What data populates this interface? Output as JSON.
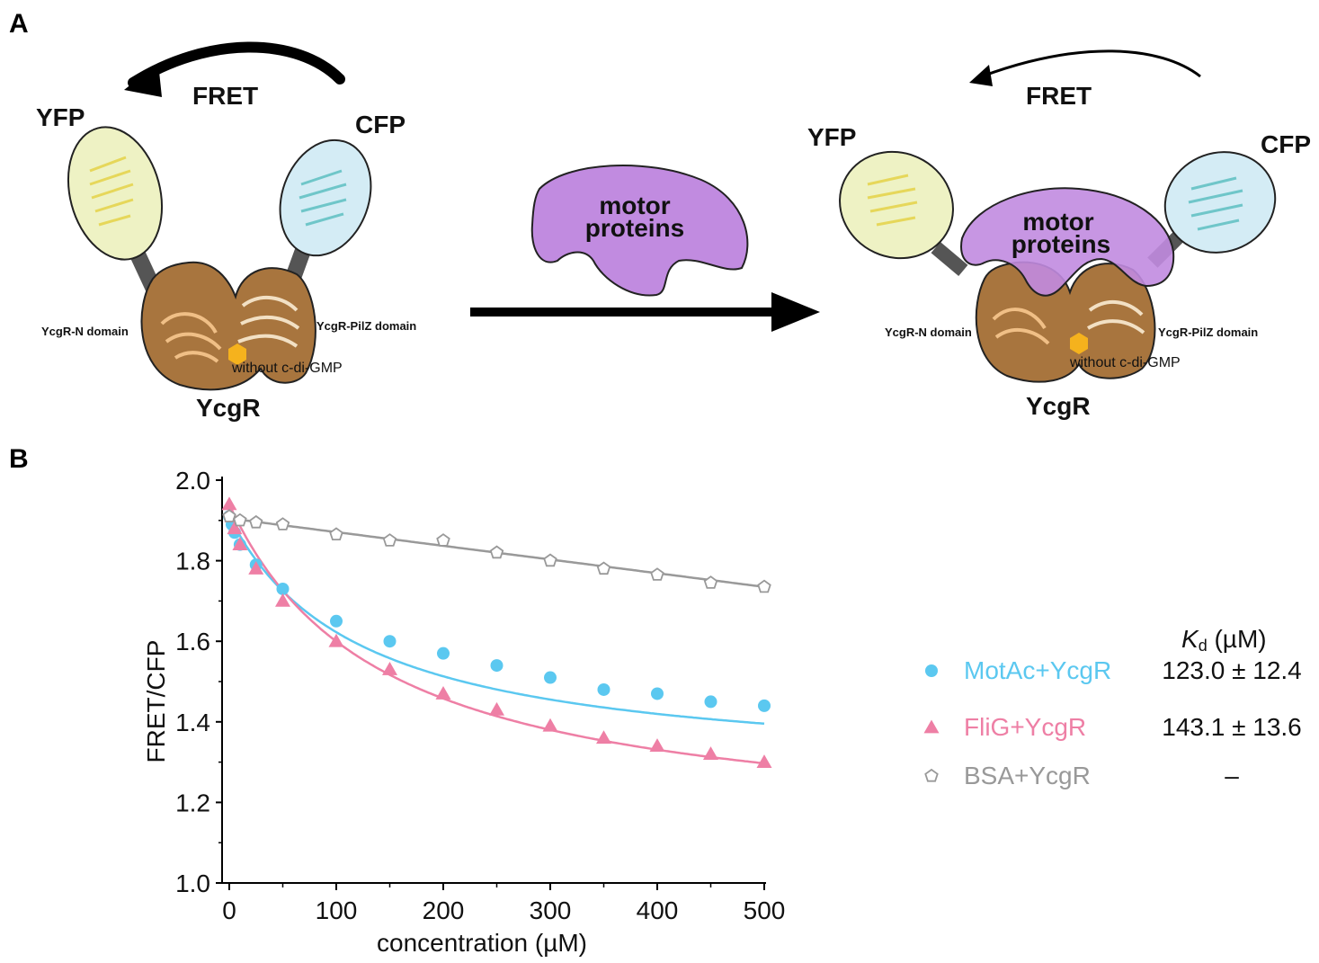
{
  "panel_a": {
    "letter": "A",
    "left": {
      "fret": "FRET",
      "yfp": "YFP",
      "cfp": "CFP",
      "n_domain": "YcgR-N domain",
      "pilz_domain": "YcgR-PilZ domain",
      "ligand_note": "without c-di-GMP",
      "protein": "YcgR"
    },
    "middle": {
      "motor_line1": "motor",
      "motor_line2": "proteins"
    },
    "right": {
      "fret": "FRET",
      "yfp": "YFP",
      "cfp": "CFP",
      "motor_line1": "motor",
      "motor_line2": "proteins",
      "n_domain": "YcgR-N domain",
      "pilz_domain": "YcgR-PilZ domain",
      "ligand_note": "without c-di-GMP",
      "protein": "YcgR"
    },
    "colors": {
      "yfp_fill": "#eef2c4",
      "cfp_fill": "#d4ecf5",
      "ycgr_fill": "#a8753e",
      "motor_fill": "#c18be0",
      "ligand": "#f5b21d"
    }
  },
  "panel_b": {
    "letter": "B",
    "kd_header": "K",
    "kd_sub": "d",
    "kd_unit": " (µM)"
  },
  "chart_data": {
    "type": "scatter",
    "xlabel": "concentration (µM)",
    "ylabel": "FRET/CFP",
    "xlim": [
      0,
      500
    ],
    "ylim": [
      1.0,
      2.0
    ],
    "xticks": [
      0,
      100,
      200,
      300,
      400,
      500
    ],
    "yticks": [
      1.0,
      1.2,
      1.4,
      1.6,
      1.8,
      2.0
    ],
    "ytick_labels": [
      "1.0",
      "1.2",
      "1.4",
      "1.6",
      "1.8",
      "2.0"
    ],
    "series": [
      {
        "name": "MotAc+YcgR",
        "color": "#5bc8f0",
        "marker": "circle",
        "kd": "123.0 ± 12.4",
        "x": [
          0,
          2.5,
          5,
          10,
          25,
          50,
          100,
          150,
          200,
          250,
          300,
          350,
          400,
          450,
          500
        ],
        "y": [
          1.91,
          1.89,
          1.87,
          1.84,
          1.79,
          1.73,
          1.65,
          1.6,
          1.57,
          1.54,
          1.51,
          1.48,
          1.47,
          1.45,
          1.44
        ],
        "fit": {
          "y0": 1.91,
          "span": 0.641,
          "kd": 123.0
        }
      },
      {
        "name": "FliG+YcgR",
        "color": "#ee7fa5",
        "marker": "triangle",
        "kd": "143.1 ± 13.6",
        "x": [
          0,
          2.5,
          5,
          10,
          25,
          50,
          100,
          150,
          200,
          250,
          300,
          350,
          400,
          450,
          500
        ],
        "y": [
          1.94,
          1.91,
          1.88,
          1.84,
          1.78,
          1.7,
          1.6,
          1.53,
          1.47,
          1.43,
          1.39,
          1.36,
          1.34,
          1.32,
          1.3
        ],
        "fit": {
          "y0": 1.94,
          "span": 0.827,
          "kd": 143.1
        }
      },
      {
        "name": "BSA+YcgR",
        "color": "#999999",
        "marker": "pentagon-open",
        "kd": "–",
        "x": [
          0,
          10,
          25,
          50,
          100,
          150,
          200,
          250,
          300,
          350,
          400,
          450,
          500
        ],
        "y": [
          1.91,
          1.9,
          1.895,
          1.89,
          1.865,
          1.85,
          1.85,
          1.82,
          1.8,
          1.78,
          1.765,
          1.745,
          1.735
        ],
        "fit": {
          "linear": true,
          "y0": 1.905,
          "slope": -0.00034
        }
      }
    ]
  }
}
